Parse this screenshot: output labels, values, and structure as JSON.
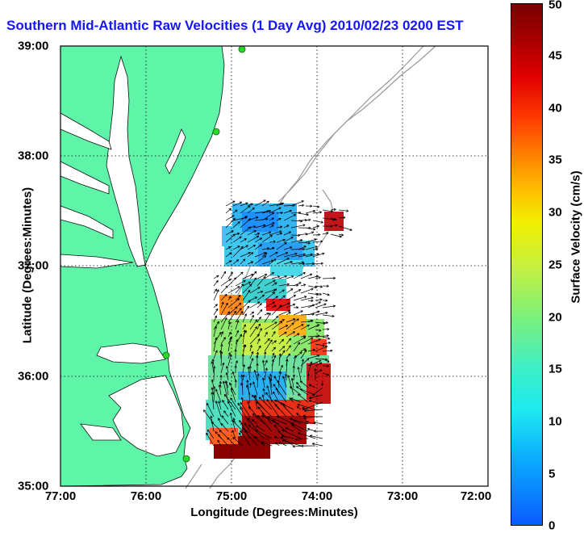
{
  "title": "Southern Mid-Atlantic Raw Velocities (1 Day Avg) 2010/02/23 0200 EST",
  "map": {
    "x_label": "Longitude (Degrees:Minutes)",
    "y_label": "Latitude (Degrees:Minutes)",
    "x_ticks": [
      "77:00",
      "76:00",
      "75:00",
      "74:00",
      "73:00",
      "72:00"
    ],
    "y_ticks": [
      "39:00",
      "38:00",
      "37:00",
      "36:00",
      "35:00"
    ],
    "lon_range": [
      -77,
      -72
    ],
    "lat_range": [
      35,
      39
    ],
    "land_color": "#5ff5a8",
    "station_color": "#2bd62b"
  },
  "colorbar": {
    "label": "Surface Velocity (cm/s)",
    "ticks": [
      "0",
      "5",
      "10",
      "15",
      "20",
      "25",
      "30",
      "35",
      "40",
      "45",
      "50"
    ],
    "range": [
      0,
      50
    ]
  }
}
